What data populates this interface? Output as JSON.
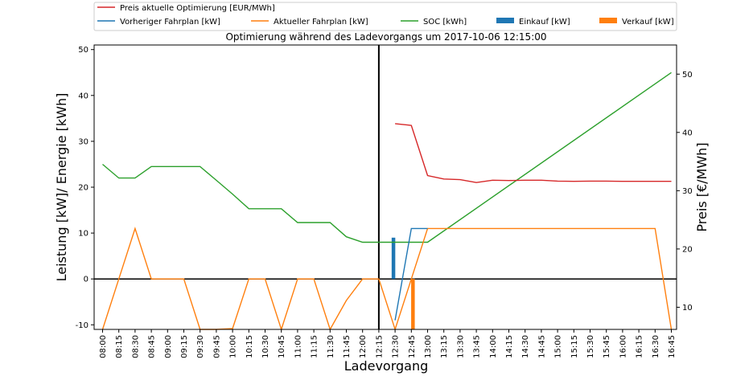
{
  "chart_data": {
    "type": "line",
    "title": "Optimierung während des Ladevorgangs um 2017-10-06 12:15:00",
    "xlabel": "Ladevorgang",
    "ylabel": "Leistung [kW]/ Energie [kWh]",
    "y2label": "Preis [€/MWh]",
    "ylim": [
      -11,
      51
    ],
    "y2lim": [
      6.2,
      55
    ],
    "yticks": [
      -10,
      0,
      10,
      20,
      30,
      40,
      50
    ],
    "y2ticks": [
      10,
      20,
      30,
      40,
      50
    ],
    "grid": false,
    "legend_position": "top",
    "x": [
      "08:00",
      "08:15",
      "08:30",
      "08:45",
      "09:00",
      "09:15",
      "09:30",
      "09:45",
      "10:00",
      "10:15",
      "10:30",
      "10:45",
      "11:00",
      "11:15",
      "11:30",
      "11:45",
      "12:00",
      "12:15",
      "12:30",
      "12:45",
      "13:00",
      "13:15",
      "13:30",
      "13:45",
      "14:00",
      "14:15",
      "14:30",
      "14:45",
      "15:00",
      "15:15",
      "15:30",
      "15:45",
      "16:00",
      "16:15",
      "16:30",
      "16:45"
    ],
    "current_time_marker": "12:15",
    "legend": [
      {
        "key": "price",
        "label": "Preis aktuelle Optimierung [EUR/MWh]",
        "color": "#d62728",
        "kind": "line"
      },
      {
        "key": "prev",
        "label": "Vorheriger Fahrplan [kW]",
        "color": "#1f77b4",
        "kind": "line"
      },
      {
        "key": "cur",
        "label": "Aktueller Fahrplan [kW]",
        "color": "#ff7f0e",
        "kind": "line"
      },
      {
        "key": "soc",
        "label": "SOC [kWh]",
        "color": "#2ca02c",
        "kind": "line"
      },
      {
        "key": "buy",
        "label": "Einkauf [kW]",
        "color": "#1f77b4",
        "kind": "bar"
      },
      {
        "key": "sell",
        "label": "Verkauf [kW]",
        "color": "#ff7f0e",
        "kind": "bar"
      }
    ],
    "series": [
      {
        "key": "soc",
        "axis": "left",
        "color": "#2ca02c",
        "x": [
          "08:00",
          "08:15",
          "08:30",
          "08:45",
          "09:00",
          "09:15",
          "09:30",
          "09:45",
          "10:00",
          "10:15",
          "10:30",
          "10:45",
          "11:00",
          "11:15",
          "11:30",
          "11:45",
          "12:00",
          "12:15",
          "12:30",
          "12:45",
          "13:00",
          "16:45"
        ],
        "values": [
          25,
          22,
          22,
          24.5,
          24.5,
          24.5,
          24.5,
          21.5,
          18.5,
          15.3,
          15.3,
          15.3,
          12.3,
          12.3,
          12.3,
          9.2,
          8,
          8,
          8,
          8,
          8,
          45
        ]
      },
      {
        "key": "cur",
        "axis": "left",
        "color": "#ff7f0e",
        "x": [
          "08:00",
          "08:15",
          "08:30",
          "08:45",
          "09:00",
          "09:15",
          "09:30",
          "09:45",
          "10:00",
          "10:15",
          "10:30",
          "10:45",
          "11:00",
          "11:15",
          "11:30",
          "11:45",
          "12:00",
          "12:15",
          "12:30",
          "12:45",
          "13:00",
          "13:15",
          "13:30",
          "13:45",
          "14:00",
          "14:15",
          "14:30",
          "14:45",
          "15:00",
          "15:15",
          "15:30",
          "15:45",
          "16:00",
          "16:15",
          "16:30",
          "16:45"
        ],
        "values": [
          -11,
          0,
          11,
          0,
          0,
          0,
          -11,
          -11,
          -10.8,
          0,
          0,
          -11,
          0,
          0,
          -11,
          -4.7,
          0,
          0,
          -11,
          0,
          11,
          11,
          11,
          11,
          11,
          11,
          11,
          11,
          11,
          11,
          11,
          11,
          11,
          11,
          11,
          -11
        ]
      },
      {
        "key": "prev",
        "axis": "left",
        "color": "#1f77b4",
        "x": [
          "12:30",
          "12:45",
          "13:00"
        ],
        "values": [
          -9,
          11,
          11
        ]
      },
      {
        "key": "price",
        "axis": "right",
        "color": "#d62728",
        "x": [
          "12:30",
          "12:45",
          "13:00",
          "13:15",
          "13:30",
          "13:45",
          "14:00",
          "14:15",
          "14:30",
          "14:45",
          "15:00",
          "15:15",
          "15:30",
          "15:45",
          "16:00",
          "16:15",
          "16:30",
          "16:45"
        ],
        "values": [
          41.5,
          41.2,
          32.6,
          32.0,
          31.9,
          31.4,
          31.8,
          31.75,
          31.8,
          31.8,
          31.65,
          31.6,
          31.65,
          31.65,
          31.6,
          31.6,
          31.6,
          31.6
        ]
      }
    ],
    "bars": [
      {
        "key": "buy",
        "x": "12:30",
        "value": 9,
        "color": "#1f77b4",
        "offset": -0.1
      },
      {
        "key": "sell",
        "x": "12:45",
        "value": -11,
        "color": "#ff7f0e",
        "offset": 0.1
      }
    ]
  }
}
